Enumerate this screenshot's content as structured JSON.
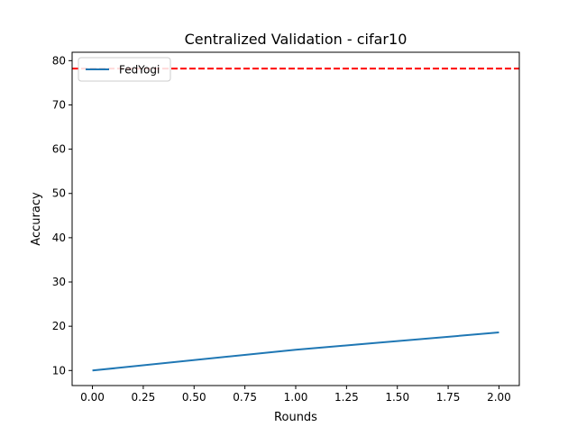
{
  "chart_data": {
    "type": "line",
    "title": "Centralized Validation - cifar10",
    "xlabel": "Rounds",
    "ylabel": "Accuracy",
    "xlim": [
      -0.1,
      2.1
    ],
    "ylim": [
      6.6,
      81.9
    ],
    "xticks": [
      0.0,
      0.25,
      0.5,
      0.75,
      1.0,
      1.25,
      1.5,
      1.75,
      2.0
    ],
    "xtick_labels": [
      "0.00",
      "0.25",
      "0.50",
      "0.75",
      "1.00",
      "1.25",
      "1.50",
      "1.75",
      "2.00"
    ],
    "yticks": [
      10,
      20,
      30,
      40,
      50,
      60,
      70,
      80
    ],
    "ytick_labels": [
      "10",
      "20",
      "30",
      "40",
      "50",
      "60",
      "70",
      "80"
    ],
    "grid": false,
    "legend": {
      "placement": "upper-left",
      "entries": [
        "FedYogi"
      ]
    },
    "series": [
      {
        "name": "FedYogi",
        "color": "#1f77b4",
        "x": [
          0,
          1,
          2
        ],
        "y": [
          10.0,
          14.7,
          18.6
        ]
      }
    ],
    "reference_lines": [
      {
        "orientation": "horizontal",
        "y": 78.2,
        "color": "#ff0000",
        "style": "dashed"
      }
    ]
  }
}
